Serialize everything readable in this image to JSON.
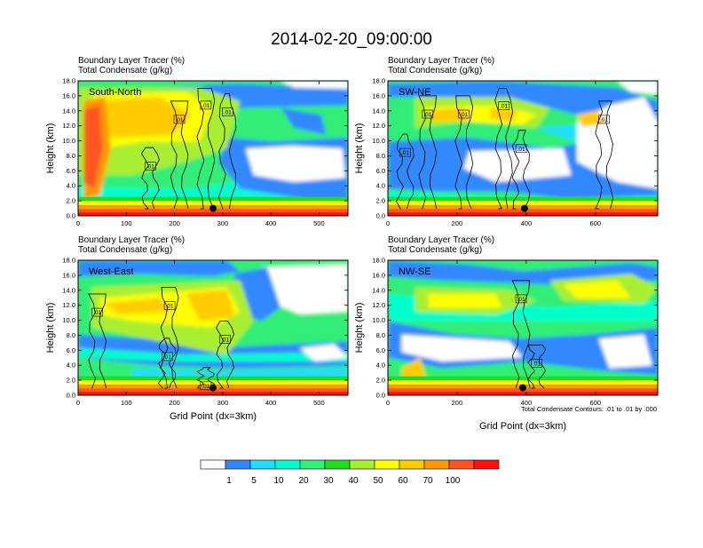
{
  "page_title": "2014-02-20_09:00:00",
  "panel_title_line1": "Boundary Layer Tracer   (%)",
  "panel_title_line2": "Total Condensate   (g/kg)",
  "ylabel": "Height (km)",
  "xlabel": "Grid Point (dx=3km)",
  "contour_note": "Total Condensate Contours: .01 to .01 by .000",
  "contour_label": ".01",
  "colors": {
    "white": "#ffffff",
    "blue": "#3388ff",
    "light_blue": "#22ddff",
    "cyan": "#00ffcc",
    "green_lt": "#33ee77",
    "green": "#22dd22",
    "yellowgreen": "#aaee33",
    "yellow": "#ffff00",
    "gold": "#ffcc00",
    "orange": "#ff9900",
    "red_orange": "#ff5522",
    "red": "#ff1111"
  },
  "colorbar": {
    "labels": [
      "1",
      "5",
      "10",
      "20",
      "30",
      "40",
      "50",
      "60",
      "70",
      "100"
    ],
    "boxes": [
      "#ffffff",
      "#3388ff",
      "#22ddff",
      "#00ffcc",
      "#33ee77",
      "#22dd22",
      "#aaee33",
      "#ffff00",
      "#ffcc00",
      "#ff9900",
      "#ff5522",
      "#ff1111"
    ]
  },
  "chart_data": [
    {
      "type": "heatmap",
      "name": "South-North",
      "title": "Boundary Layer Tracer (%) / Total Condensate (g/kg)",
      "xlabel": "",
      "ylabel": "Height (km)",
      "xlim": [
        0,
        560
      ],
      "ylim": [
        0,
        18
      ],
      "xticks": [
        0,
        100,
        200,
        300,
        400,
        500
      ],
      "yticks": [
        "0.0",
        "2.0",
        "4.0",
        "6.0",
        "8.0",
        "10.0",
        "12.0",
        "14.0",
        "16.0",
        "18.0"
      ],
      "marker": {
        "x": 280,
        "y": 1.0
      },
      "contour_labels": [
        {
          "x": 210,
          "y": 12.8
        },
        {
          "x": 265,
          "y": 14.7
        },
        {
          "x": 150,
          "y": 6.6
        },
        {
          "x": 310,
          "y": 13.8
        }
      ]
    },
    {
      "type": "heatmap",
      "name": "SW-NE",
      "title": "Boundary Layer Tracer (%) / Total Condensate (g/kg)",
      "xlabel": "",
      "ylabel": "Height (km)",
      "xlim": [
        0,
        780
      ],
      "ylim": [
        0,
        18
      ],
      "xticks": [
        0,
        200,
        400,
        600
      ],
      "yticks": [
        "0.0",
        "2.0",
        "4.0",
        "6.0",
        "8.0",
        "10.0",
        "12.0",
        "14.0",
        "16.0",
        "18.0"
      ],
      "marker": {
        "x": 395,
        "y": 1.0
      },
      "contour_labels": [
        {
          "x": 115,
          "y": 13.5
        },
        {
          "x": 220,
          "y": 13.5
        },
        {
          "x": 335,
          "y": 14.6
        },
        {
          "x": 50,
          "y": 8.4
        },
        {
          "x": 385,
          "y": 8.9
        },
        {
          "x": 625,
          "y": 12.8
        }
      ]
    },
    {
      "type": "heatmap",
      "name": "West-East",
      "title": "Boundary Layer Tracer (%) / Total Condensate (g/kg)",
      "xlabel": "Grid Point (dx=3km)",
      "ylabel": "Height (km)",
      "xlim": [
        0,
        560
      ],
      "ylim": [
        0,
        18
      ],
      "xticks": [
        0,
        100,
        200,
        300,
        400,
        500
      ],
      "yticks": [
        "0.0",
        "2.0",
        "4.0",
        "6.0",
        "8.0",
        "10.0",
        "12.0",
        "14.0",
        "16.0",
        "18.0"
      ],
      "marker": {
        "x": 280,
        "y": 1.0
      },
      "contour_labels": [
        {
          "x": 40,
          "y": 11.0
        },
        {
          "x": 190,
          "y": 11.9
        },
        {
          "x": 305,
          "y": 7.4
        },
        {
          "x": 185,
          "y": 5.1
        },
        {
          "x": 265,
          "y": 1.2
        }
      ]
    },
    {
      "type": "heatmap",
      "name": "NW-SE",
      "title": "Boundary Layer Tracer (%) / Total Condensate (g/kg)",
      "xlabel": "Grid Point (dx=3km)",
      "ylabel": "Height (km)",
      "xlim": [
        0,
        780
      ],
      "ylim": [
        0,
        18
      ],
      "xticks": [
        0,
        200,
        400,
        600
      ],
      "yticks": [
        "0.0",
        "2.0",
        "4.0",
        "6.0",
        "8.0",
        "10.0",
        "12.0",
        "14.0",
        "16.0",
        "18.0"
      ],
      "marker": {
        "x": 390,
        "y": 1.0
      },
      "contour_labels": [
        {
          "x": 385,
          "y": 12.8
        },
        {
          "x": 430,
          "y": 4.2
        }
      ]
    }
  ]
}
